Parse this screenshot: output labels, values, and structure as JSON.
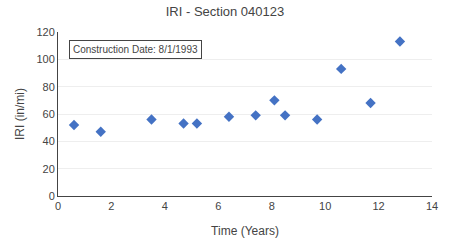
{
  "chart_data": {
    "type": "scatter",
    "title": "IRI - Section 040123",
    "xlabel": "Time (Years)",
    "ylabel": "IRI (in/mi)",
    "annotation": "Construction Date: 8/1/1993",
    "x": [
      0.6,
      1.6,
      3.5,
      4.7,
      5.2,
      6.4,
      7.4,
      8.1,
      8.5,
      9.7,
      10.6,
      11.7,
      12.8
    ],
    "values": [
      52,
      47,
      56,
      53,
      53,
      58,
      59,
      70,
      59,
      56,
      93,
      68,
      113
    ],
    "color": "#4472C4",
    "marker": "diamond",
    "xlim": [
      0,
      14
    ],
    "ylim": [
      0,
      120
    ],
    "xticks": [
      0,
      2,
      4,
      6,
      8,
      10,
      12,
      14
    ],
    "yticks": [
      0,
      20,
      40,
      60,
      80,
      100,
      120
    ],
    "grid": "y"
  }
}
